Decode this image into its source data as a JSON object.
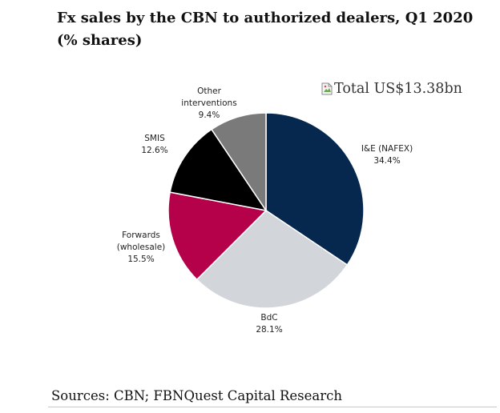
{
  "page": {
    "title_line1": "Fx sales by the CBN to authorized dealers, Q1 2020",
    "title_line2": "(% shares)",
    "note": "Total US$13.38bn",
    "source": "Sources: CBN; FBNQuest Capital Research"
  },
  "chart_data": {
    "type": "pie",
    "title": "Fx sales by the CBN to authorized dealers, Q1 2020 (% shares)",
    "unit": "%",
    "slices": [
      {
        "label": "I&E (NAFEX)",
        "value": 34.4,
        "value_label": "34.4%",
        "color": "#06284f"
      },
      {
        "label": "BdC",
        "value": 28.1,
        "value_label": "28.1%",
        "color": "#d2d5d9"
      },
      {
        "label": "Forwards (wholesale)",
        "value": 15.5,
        "value_label": "15.5%",
        "color": "#b5004a"
      },
      {
        "label": "SMIS",
        "value": 12.6,
        "value_label": "12.6%",
        "color": "#000000"
      },
      {
        "label": "Other interventions",
        "value": 9.4,
        "value_label": "9.4%",
        "color": "#7a7a7a"
      }
    ],
    "start_angle": "12 o'clock",
    "direction": "clockwise"
  }
}
